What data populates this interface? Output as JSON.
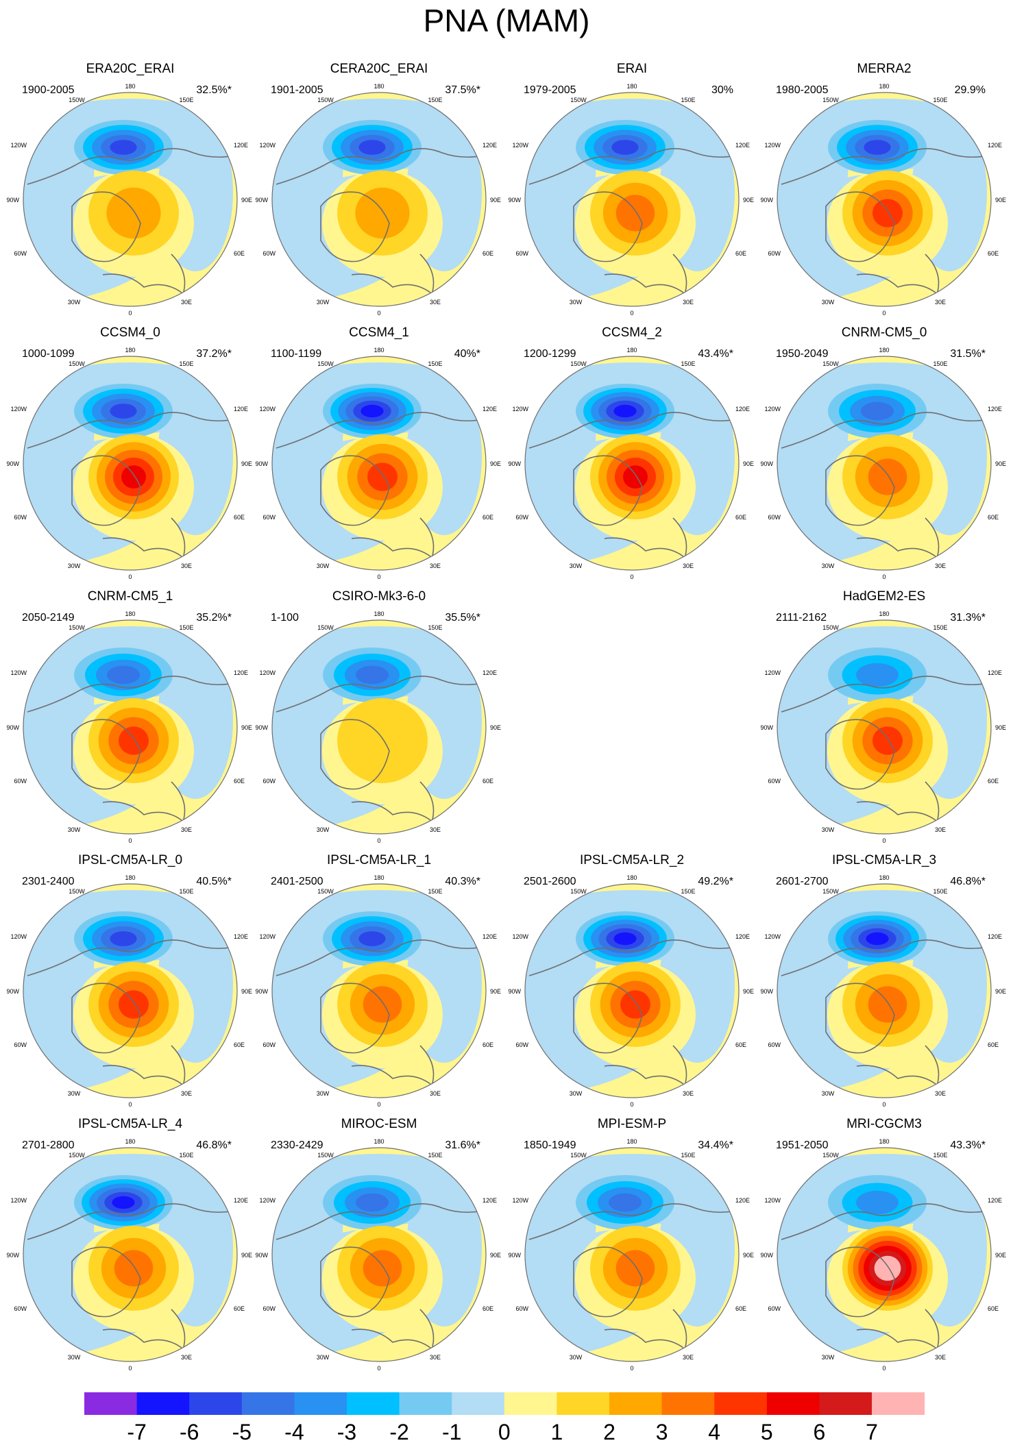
{
  "title": "PNA (MAM)",
  "chart_data": {
    "type": "polar-stereographic contour maps",
    "variable": "PNA pattern (MAM)",
    "degree_labels": {
      "top": "180",
      "top_left": "150W",
      "top_right": "150E",
      "left_upper": "120W",
      "right_upper": "120E",
      "left": "90W",
      "right": "90E",
      "left_lower": "60W",
      "right_lower": "60E",
      "bottom_left": "30W",
      "bottom_right": "30E",
      "bottom": "0"
    },
    "panels": [
      {
        "name": "ERA20C_ERAI",
        "period": "1900-2005",
        "variance": "32.5%*",
        "neg_min": -5,
        "pos_max": 2
      },
      {
        "name": "CERA20C_ERAI",
        "period": "1901-2005",
        "variance": "37.5%*",
        "neg_min": -5,
        "pos_max": 2
      },
      {
        "name": "ERAI",
        "period": "1979-2005",
        "variance": "30%",
        "neg_min": -5,
        "pos_max": 3
      },
      {
        "name": "MERRA2",
        "period": "1980-2005",
        "variance": "29.9%",
        "neg_min": -5,
        "pos_max": 4
      },
      {
        "name": "CCSM4_0",
        "period": "1000-1099",
        "variance": "37.2%*",
        "neg_min": -5,
        "pos_max": 5
      },
      {
        "name": "CCSM4_1",
        "period": "1100-1199",
        "variance": "40%*",
        "neg_min": -6,
        "pos_max": 4
      },
      {
        "name": "CCSM4_2",
        "period": "1200-1299",
        "variance": "43.4%*",
        "neg_min": -6,
        "pos_max": 5
      },
      {
        "name": "CNRM-CM5_0",
        "period": "1950-2049",
        "variance": "31.5%*",
        "neg_min": -4,
        "pos_max": 3
      },
      {
        "name": "CNRM-CM5_1",
        "period": "2050-2149",
        "variance": "35.2%*",
        "neg_min": -4,
        "pos_max": 4
      },
      {
        "name": "CSIRO-Mk3-6-0",
        "period": "1-100",
        "variance": "35.5%*",
        "neg_min": -4,
        "pos_max": 1
      },
      null,
      {
        "name": "HadGEM2-ES",
        "period": "2111-2162",
        "variance": "31.3%*",
        "neg_min": -3,
        "pos_max": 4
      },
      {
        "name": "IPSL-CM5A-LR_0",
        "period": "2301-2400",
        "variance": "40.5%*",
        "neg_min": -5,
        "pos_max": 4
      },
      {
        "name": "IPSL-CM5A-LR_1",
        "period": "2401-2500",
        "variance": "40.3%*",
        "neg_min": -5,
        "pos_max": 3
      },
      {
        "name": "IPSL-CM5A-LR_2",
        "period": "2501-2600",
        "variance": "49.2%*",
        "neg_min": -6,
        "pos_max": 4
      },
      {
        "name": "IPSL-CM5A-LR_3",
        "period": "2601-2700",
        "variance": "46.8%*",
        "neg_min": -6,
        "pos_max": 3
      },
      {
        "name": "IPSL-CM5A-LR_4",
        "period": "2701-2800",
        "variance": "46.8%*",
        "neg_min": -6,
        "pos_max": 3
      },
      {
        "name": "MIROC-ESM",
        "period": "2330-2429",
        "variance": "31.6%*",
        "neg_min": -4,
        "pos_max": 3
      },
      {
        "name": "MPI-ESM-P",
        "period": "1850-1949",
        "variance": "34.4%*",
        "neg_min": -4,
        "pos_max": 3
      },
      {
        "name": "MRI-CGCM3",
        "period": "1951-2050",
        "variance": "43.3%*",
        "neg_min": -3,
        "pos_max": 8
      }
    ],
    "colorbar": {
      "ticks": [
        "-7",
        "-6",
        "-5",
        "-4",
        "-3",
        "-2",
        "-1",
        "0",
        "1",
        "2",
        "3",
        "4",
        "5",
        "6",
        "7"
      ],
      "colors": [
        "#8a2be2",
        "#1414ff",
        "#2d46ea",
        "#3575e8",
        "#2891f2",
        "#00c0ff",
        "#75caf2",
        "#b3dcf5",
        "#fff68f",
        "#ffd526",
        "#ffa800",
        "#ff7300",
        "#ff3500",
        "#ee0000",
        "#d41a1a",
        "#ffb3b3"
      ]
    }
  }
}
